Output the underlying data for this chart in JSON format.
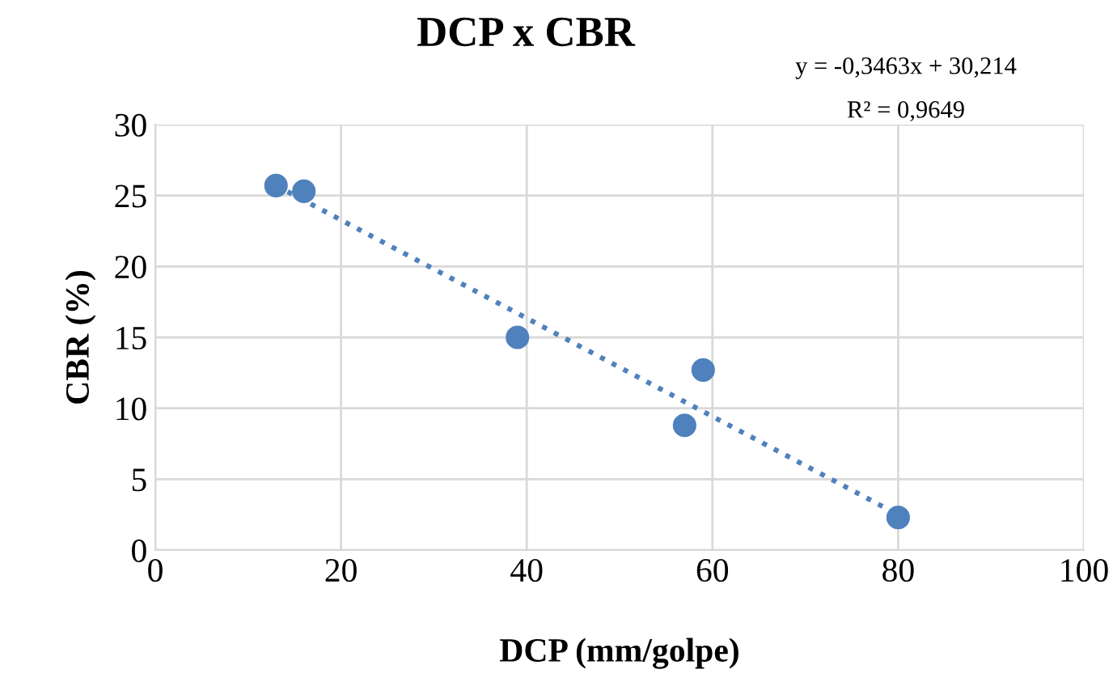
{
  "chart_data": {
    "type": "scatter",
    "title": "DCP x CBR",
    "xlabel": "DCP (mm/golpe)",
    "ylabel": "CBR (%)",
    "annotations": [
      "y = -0,3463x + 30,214",
      "R² = 0,9649"
    ],
    "series": [
      {
        "color": "#4f81bd",
        "x": [
          13,
          16,
          39,
          57,
          59,
          80
        ],
        "values": [
          25.7,
          25.3,
          15,
          8.8,
          12.7,
          2.3
        ],
        "marker": "circle"
      },
      {
        "type": "line",
        "color": "#4f81bd",
        "x": [
          13,
          80
        ],
        "values": [
          25.7,
          2.5
        ],
        "line_style": "dotted",
        "marker": "none"
      }
    ],
    "xlim": [
      0,
      100
    ],
    "xticks": [
      0,
      20,
      40,
      60,
      80,
      100
    ],
    "ylim": [
      0,
      30
    ],
    "yticks": [
      0,
      5,
      10,
      15,
      20,
      25,
      30
    ],
    "grid": true,
    "legend": false
  }
}
